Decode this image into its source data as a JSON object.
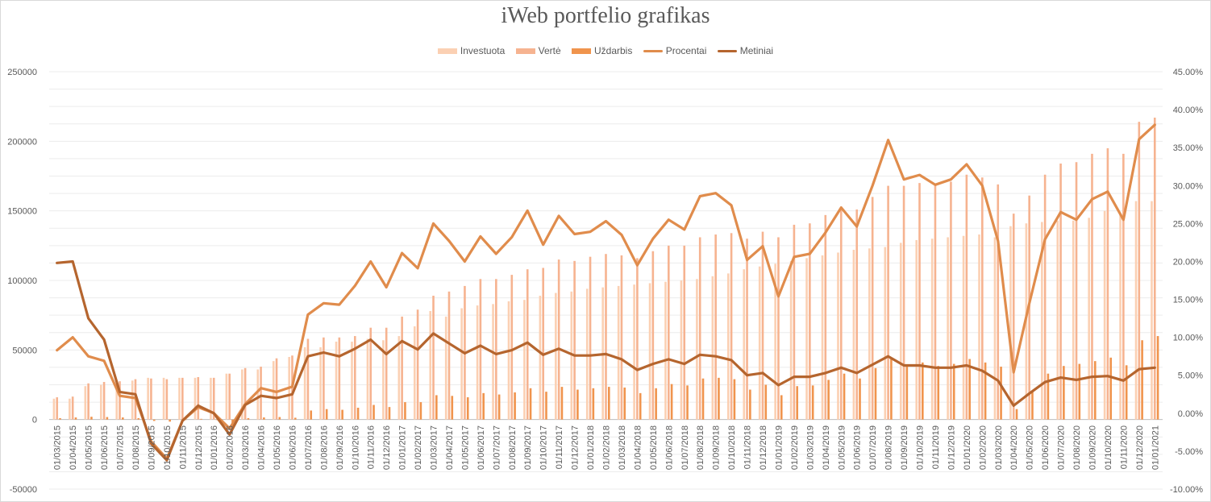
{
  "chart_data": {
    "type": "bar",
    "title": "iWeb portfelio grafikas",
    "legend_position": "top",
    "grid": true,
    "colors": {
      "Investuota": "#fbd0b3",
      "Vertė": "#f6b390",
      "Uždarbis": "#f0944d",
      "Procentai": "#e08c4c",
      "Metiniai": "#b5652e"
    },
    "categories": [
      "01/03/2015",
      "01/04/2015",
      "01/05/2015",
      "01/06/2015",
      "01/07/2015",
      "01/08/2015",
      "01/09/2015",
      "01/10/2015",
      "01/11/2015",
      "01/12/2015",
      "01/01/2016",
      "01/02/2016",
      "01/03/2016",
      "01/04/2016",
      "01/05/2016",
      "01/06/2016",
      "01/07/2016",
      "01/08/2016",
      "01/09/2016",
      "01/10/2016",
      "01/11/2016",
      "01/12/2016",
      "01/01/2017",
      "01/02/2017",
      "01/03/2017",
      "01/04/2017",
      "01/05/2017",
      "01/06/2017",
      "01/07/2017",
      "01/08/2017",
      "01/09/2017",
      "01/10/2017",
      "01/11/2017",
      "01/12/2017",
      "01/01/2018",
      "01/02/2018",
      "01/03/2018",
      "01/04/2018",
      "01/05/2018",
      "01/06/2018",
      "01/07/2018",
      "01/08/2018",
      "01/09/2018",
      "01/10/2018",
      "01/11/2018",
      "01/12/2018",
      "01/01/2019",
      "01/02/2019",
      "01/03/2019",
      "01/04/2019",
      "01/05/2019",
      "01/06/2019",
      "01/07/2019",
      "01/08/2019",
      "01/09/2019",
      "01/10/2019",
      "01/11/2019",
      "01/12/2019",
      "01/01/2020",
      "01/02/2020",
      "01/03/2020",
      "01/04/2020",
      "01/05/2020",
      "01/06/2020",
      "01/07/2020",
      "01/08/2020",
      "01/09/2020",
      "01/10/2020",
      "01/11/2020",
      "01/12/2020",
      "01/01/2021"
    ],
    "y_left": {
      "ylim": [
        -50000,
        250000
      ],
      "ticks": [
        -50000,
        0,
        50000,
        100000,
        150000,
        200000,
        250000
      ],
      "tick_labels": [
        "-50000",
        "0",
        "50000",
        "100000",
        "150000",
        "200000",
        "250000"
      ]
    },
    "y_right": {
      "ylim": [
        -10,
        45
      ],
      "ticks": [
        -10,
        -5,
        0,
        5,
        10,
        15,
        20,
        25,
        30,
        35,
        40,
        45
      ],
      "tick_labels": [
        "-10.00%",
        "-5.00%",
        "0.00%",
        "5.00%",
        "10.00%",
        "15.00%",
        "20.00%",
        "25.00%",
        "30.00%",
        "35.00%",
        "40.00%",
        "45.00%"
      ]
    },
    "series": [
      {
        "name": "Investuota",
        "type": "bar",
        "axis": "left",
        "values": [
          15000,
          15000,
          24000,
          25000,
          26000,
          28000,
          30000,
          30000,
          30000,
          30000,
          30000,
          33000,
          36000,
          36000,
          42000,
          45000,
          52000,
          52000,
          56000,
          56000,
          58000,
          57000,
          60000,
          67000,
          78000,
          74000,
          80000,
          82000,
          83000,
          85000,
          86000,
          89000,
          91000,
          92000,
          94000,
          95000,
          96000,
          97000,
          98000,
          99000,
          100000,
          101000,
          103000,
          105000,
          108000,
          110000,
          112000,
          114000,
          116000,
          118000,
          120000,
          122000,
          123000,
          124000,
          127000,
          129000,
          130000,
          131000,
          132000,
          133000,
          131000,
          139000,
          141000,
          142000,
          143000,
          143000,
          145000,
          150000,
          148000,
          157000,
          157000
        ]
      },
      {
        "name": "Vertė",
        "type": "bar",
        "axis": "left",
        "values": [
          16000,
          16500,
          26000,
          27000,
          27500,
          29000,
          29500,
          29000,
          30000,
          30500,
          30000,
          33000,
          37000,
          38000,
          44000,
          46000,
          58000,
          59000,
          59000,
          60000,
          66000,
          66000,
          74000,
          79000,
          89000,
          92000,
          96000,
          101000,
          101000,
          104000,
          108000,
          109000,
          115000,
          114000,
          117000,
          119000,
          118000,
          116000,
          121000,
          125000,
          125000,
          131000,
          133000,
          134000,
          130000,
          135000,
          131000,
          140000,
          141000,
          147000,
          153000,
          151000,
          160000,
          168000,
          168000,
          170000,
          168000,
          171000,
          176000,
          174000,
          169000,
          148000,
          161000,
          176000,
          184000,
          185000,
          191000,
          195000,
          191000,
          214000,
          217000
        ]
      },
      {
        "name": "Uždarbis",
        "type": "bar",
        "axis": "left",
        "values": [
          1000,
          1500,
          2000,
          1800,
          1500,
          1000,
          -1000,
          -1500,
          0,
          500,
          0,
          -3000,
          1000,
          1500,
          1800,
          1300,
          6500,
          7500,
          7000,
          8500,
          10500,
          9000,
          12500,
          12500,
          17500,
          17000,
          16000,
          19000,
          18000,
          19500,
          22500,
          20000,
          23500,
          21500,
          22500,
          23500,
          23000,
          19000,
          22500,
          25500,
          24500,
          29500,
          30000,
          29000,
          21500,
          25000,
          17500,
          24000,
          24500,
          28500,
          33000,
          29500,
          37000,
          43500,
          39000,
          41000,
          38500,
          40000,
          43500,
          41000,
          38000,
          7500,
          20500,
          33000,
          38500,
          40000,
          42000,
          44500,
          39000,
          57000,
          60000
        ]
      },
      {
        "name": "Procentai",
        "type": "line",
        "axis": "right",
        "values": [
          8.3,
          10,
          7.5,
          6.9,
          2.3,
          2.0,
          -3.7,
          -6,
          -1,
          0.8,
          0,
          -2,
          1.2,
          3.3,
          2.8,
          3.5,
          13,
          14.5,
          14.3,
          16.8,
          20,
          16.6,
          21.1,
          19.1,
          25,
          22.7,
          20,
          23.3,
          21,
          23.2,
          26.7,
          22.2,
          26,
          23.6,
          23.9,
          25.3,
          23.5,
          19.5,
          23,
          25.5,
          24.2,
          28.6,
          29,
          27.4,
          20.2,
          22,
          15.4,
          20.6,
          21,
          23.8,
          27.1,
          24.6,
          30,
          36,
          30.8,
          31.4,
          30.1,
          30.8,
          32.8,
          30,
          22.7,
          5.4,
          14.5,
          22.9,
          26.5,
          25.5,
          28.2,
          29.2,
          25.5,
          36.1,
          38
        ]
      },
      {
        "name": "Metiniai",
        "type": "line",
        "axis": "right",
        "values": [
          19.8,
          20,
          12.5,
          9.7,
          2.8,
          2.5,
          -4,
          -6.2,
          -1,
          1,
          0,
          -2.8,
          1.1,
          2.3,
          2,
          2.5,
          7.5,
          8,
          7.5,
          8.5,
          9.7,
          7.8,
          9.5,
          8.4,
          10.5,
          9.2,
          7.9,
          8.9,
          7.8,
          8.3,
          9.3,
          7.7,
          8.5,
          7.6,
          7.6,
          7.8,
          7.1,
          5.7,
          6.5,
          7.1,
          6.5,
          7.7,
          7.5,
          7,
          5,
          5.3,
          3.7,
          4.8,
          4.8,
          5.3,
          6,
          5.3,
          6.4,
          7.5,
          6.3,
          6.3,
          6,
          6,
          6.3,
          5.6,
          4.3,
          1,
          2.6,
          4.1,
          4.7,
          4.4,
          4.8,
          4.9,
          4.3,
          5.8,
          6
        ]
      }
    ]
  }
}
